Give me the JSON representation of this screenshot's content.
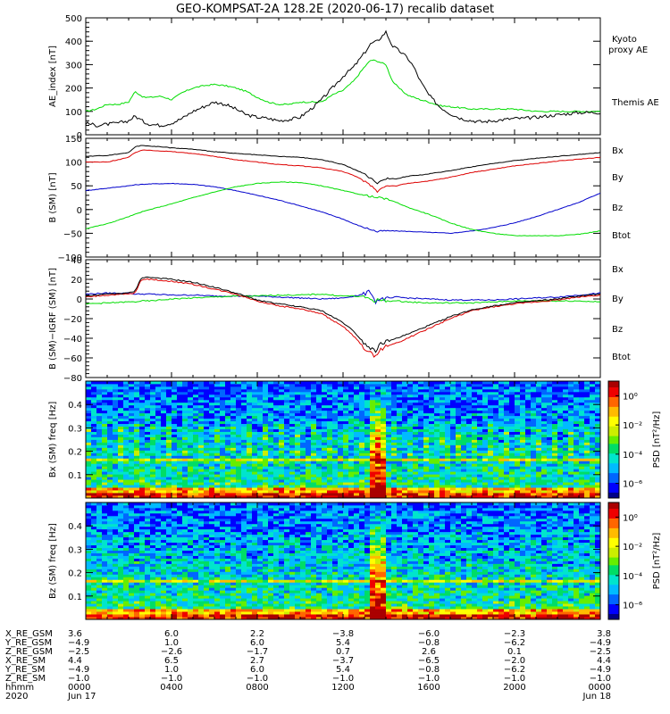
{
  "title": "GEO-KOMPSAT-2A 128.2E (2020-06-17) recalib dataset",
  "colors": {
    "green": "#00dd00",
    "blue": "#0000cc",
    "red": "#dd0000",
    "black": "#000000"
  },
  "chart_data": [
    {
      "type": "line",
      "ylabel": "AE_index [nT]",
      "ylim": [
        0,
        500
      ],
      "yticks": [
        "0",
        "100",
        "200",
        "300",
        "400",
        "500"
      ],
      "x_hours": [
        0,
        0.5,
        1,
        1.5,
        2,
        2.3,
        2.7,
        3,
        3.5,
        4,
        4.5,
        5,
        5.5,
        6,
        6.5,
        7,
        7.5,
        8,
        8.5,
        9,
        9.5,
        10,
        10.5,
        11,
        11.5,
        12,
        12.5,
        13,
        13.3,
        13.6,
        14,
        14.3,
        14.6,
        15,
        15.3,
        15.6,
        16,
        16.5,
        17,
        17.5,
        18,
        18.5,
        19,
        19.5,
        20,
        20.5,
        21,
        21.5,
        22,
        22.5,
        23,
        23.5,
        24
      ],
      "series": [
        {
          "name": "Kyoto proxy AE",
          "color_key": "green",
          "values": [
            100,
            110,
            130,
            130,
            140,
            185,
            160,
            160,
            165,
            150,
            180,
            200,
            210,
            215,
            210,
            200,
            185,
            160,
            140,
            130,
            130,
            140,
            140,
            140,
            170,
            190,
            230,
            290,
            320,
            315,
            300,
            230,
            200,
            170,
            160,
            150,
            140,
            125,
            120,
            115,
            110,
            110,
            110,
            110,
            110,
            105,
            100,
            100,
            100,
            100,
            100,
            100,
            100
          ]
        },
        {
          "name": "Themis AE",
          "color_key": "black",
          "values": [
            50,
            40,
            45,
            50,
            60,
            80,
            55,
            45,
            40,
            50,
            70,
            100,
            120,
            140,
            130,
            110,
            85,
            75,
            70,
            60,
            65,
            75,
            110,
            150,
            200,
            250,
            290,
            350,
            390,
            400,
            440,
            380,
            360,
            330,
            290,
            230,
            170,
            120,
            90,
            70,
            60,
            55,
            60,
            65,
            70,
            70,
            75,
            80,
            85,
            90,
            95,
            95,
            95
          ]
        }
      ],
      "legend": [
        "Kyoto proxy AE",
        "Themis AE"
      ]
    },
    {
      "type": "line",
      "ylabel": "B (SM) [nT]",
      "ylim": [
        -100,
        150
      ],
      "yticks": [
        "−100",
        "−50",
        "0",
        "50",
        "100",
        "150"
      ],
      "x_hours": [
        0,
        1,
        2,
        2.3,
        2.6,
        3,
        4,
        5,
        6,
        7,
        8,
        9,
        10,
        11,
        12,
        12.5,
        13,
        13.3,
        13.5,
        13.6,
        13.8,
        14,
        14.5,
        15,
        16,
        17,
        18,
        19,
        20,
        21,
        22,
        23,
        24
      ],
      "series": [
        {
          "name": "Bx",
          "color_key": "blue",
          "values": [
            40,
            45,
            50,
            52,
            53,
            54,
            55,
            53,
            48,
            40,
            30,
            20,
            8,
            -5,
            -20,
            -30,
            -38,
            -42,
            -45,
            -47,
            -45,
            -45,
            -45,
            -46,
            -48,
            -50,
            -45,
            -38,
            -28,
            -15,
            0,
            15,
            35
          ]
        },
        {
          "name": "By",
          "color_key": "green",
          "values": [
            -40,
            -30,
            -15,
            -10,
            -5,
            0,
            12,
            25,
            37,
            48,
            55,
            58,
            57,
            50,
            40,
            35,
            30,
            28,
            25,
            25,
            25,
            22,
            15,
            5,
            -10,
            -28,
            -42,
            -50,
            -55,
            -55,
            -55,
            -52,
            -45
          ]
        },
        {
          "name": "Bz",
          "color_key": "red",
          "values": [
            100,
            100,
            110,
            120,
            125,
            125,
            122,
            118,
            112,
            105,
            100,
            95,
            92,
            88,
            80,
            72,
            60,
            50,
            42,
            38,
            45,
            50,
            50,
            55,
            60,
            68,
            78,
            85,
            92,
            97,
            102,
            106,
            110
          ]
        },
        {
          "name": "Btot",
          "color_key": "black",
          "values": [
            112,
            114,
            120,
            132,
            135,
            134,
            130,
            127,
            122,
            118,
            115,
            112,
            110,
            105,
            95,
            85,
            75,
            65,
            60,
            55,
            62,
            65,
            65,
            70,
            75,
            82,
            90,
            97,
            103,
            108,
            112,
            116,
            120
          ]
        }
      ],
      "legend": [
        "Bx",
        "By",
        "Bz",
        "Btot"
      ]
    },
    {
      "type": "line",
      "ylabel": "B (SM)−IGRF (SM) [nT]",
      "ylim": [
        -80,
        40
      ],
      "yticks": [
        "−80",
        "−60",
        "−40",
        "−20",
        "0",
        "20",
        "40"
      ],
      "x_hours": [
        0,
        1,
        2,
        2.3,
        2.6,
        3,
        4,
        5,
        6,
        7,
        8,
        9,
        10,
        11,
        12,
        12.5,
        13,
        13.3,
        13.5,
        13.7,
        14,
        14.5,
        15,
        16,
        17,
        18,
        19,
        20,
        21,
        22,
        23,
        24
      ],
      "series": [
        {
          "name": "Bx",
          "color_key": "blue",
          "values": [
            5,
            6,
            6,
            5,
            5,
            5,
            4,
            4,
            3,
            3,
            3,
            2,
            1,
            0,
            1,
            3,
            5,
            8,
            -3,
            0,
            0,
            2,
            1,
            0,
            -1,
            -1,
            -1,
            0,
            1,
            2,
            4,
            6
          ]
        },
        {
          "name": "By",
          "color_key": "green",
          "values": [
            -5,
            -4,
            -3,
            -3,
            -2,
            -2,
            0,
            1,
            2,
            3,
            3,
            4,
            4,
            5,
            3,
            3,
            2,
            0,
            -2,
            -1,
            -2,
            -2,
            -3,
            -4,
            -4,
            -4,
            -3,
            -2,
            -2,
            -2,
            -2,
            -3
          ]
        },
        {
          "name": "Bz",
          "color_key": "red",
          "values": [
            2,
            4,
            5,
            6,
            20,
            20,
            18,
            15,
            10,
            5,
            -2,
            -7,
            -10,
            -15,
            -28,
            -38,
            -50,
            -55,
            -60,
            -52,
            -48,
            -45,
            -40,
            -30,
            -20,
            -12,
            -8,
            -5,
            -3,
            -1,
            2,
            4
          ]
        },
        {
          "name": "Btot",
          "color_key": "black",
          "values": [
            3,
            5,
            6,
            8,
            22,
            22,
            20,
            17,
            12,
            6,
            -1,
            -5,
            -8,
            -12,
            -24,
            -33,
            -45,
            -50,
            -53,
            -46,
            -44,
            -40,
            -36,
            -27,
            -18,
            -11,
            -7,
            -4,
            -2,
            0,
            3,
            5
          ]
        }
      ],
      "legend": [
        "Bx",
        "By",
        "Bz",
        "Btot"
      ]
    },
    {
      "type": "heatmap",
      "ylabel": "Bx (SM) freq [Hz]",
      "ylim": [
        0,
        0.5
      ],
      "yticks": [
        "0.1",
        "0.2",
        "0.3",
        "0.4"
      ],
      "colorbar_label": "PSD [nT²/Hz]",
      "colorbar_ticks": [
        "10⁰",
        "10⁻²",
        "10⁻⁴",
        "10⁻⁶"
      ],
      "colorbar_log_range": [
        -7,
        1
      ],
      "features": {
        "harmonic_line_hz": 0.167,
        "event_hour": 13.6
      }
    },
    {
      "type": "heatmap",
      "ylabel": "Bz (SM) freq [Hz]",
      "ylim": [
        0,
        0.5
      ],
      "yticks": [
        "0.1",
        "0.2",
        "0.3",
        "0.4"
      ],
      "colorbar_label": "PSD [nT²/Hz]",
      "colorbar_ticks": [
        "10⁰",
        "10⁻²",
        "10⁻⁴",
        "10⁻⁶"
      ],
      "colorbar_log_range": [
        -7,
        1
      ],
      "features": {
        "harmonic_line_hz": 0.167,
        "event_hour": 13.6
      }
    }
  ],
  "ephemeris": {
    "row_labels": [
      "X_RE_GSM",
      "Y_RE_GSM",
      "Z_RE_GSM",
      "X_RE_SM",
      "Y_RE_SM",
      "Z_RE_SM",
      "hhmm",
      "2020"
    ],
    "columns": [
      [
        "3.6",
        "−4.9",
        "−2.5",
        "4.4",
        "−4.9",
        "−1.0",
        "0000",
        "Jun 17"
      ],
      [
        "6.0",
        "1.0",
        "−2.6",
        "6.5",
        "1.0",
        "−1.0",
        "0400",
        ""
      ],
      [
        "2.2",
        "6.0",
        "−1.7",
        "2.7",
        "6.0",
        "−1.0",
        "0800",
        ""
      ],
      [
        "−3.8",
        "5.4",
        "0.7",
        "−3.7",
        "5.4",
        "−1.0",
        "1200",
        ""
      ],
      [
        "−6.0",
        "−0.8",
        "2.6",
        "−6.5",
        "−0.8",
        "−1.0",
        "1600",
        ""
      ],
      [
        "−2.3",
        "−6.2",
        "0.1",
        "−2.0",
        "−6.2",
        "−1.0",
        "2000",
        ""
      ],
      [
        "3.8",
        "−4.9",
        "−2.5",
        "4.4",
        "−4.9",
        "−1.0",
        "0000",
        "Jun 18"
      ]
    ]
  }
}
